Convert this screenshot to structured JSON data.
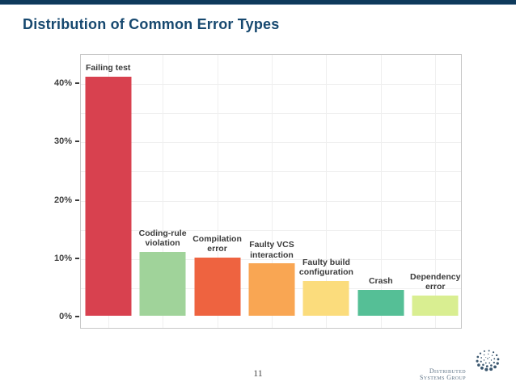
{
  "slide": {
    "title": "Distribution of Common Error Types",
    "page_number": "11",
    "footer_logo_text": "Distributed Systems Group"
  },
  "colors": {
    "top_bar": "#0e3a5c",
    "title_text": "#16486f",
    "axis_text": "#404040",
    "bar_label_text": "#3a3a3a",
    "gridline": "#efefef",
    "plot_border": "#c8c8c8",
    "page_number_text": "#4a4a4a",
    "logo_text": "#5d7285",
    "logo_dots": "#3a566e"
  },
  "chart_data": {
    "type": "bar",
    "title": "",
    "xlabel": "",
    "ylabel": "",
    "categories": [
      "Failing test",
      "Coding-rule violation",
      "Compilation error",
      "Faulty VCS interaction",
      "Faulty build configuration",
      "Crash",
      "Dependency error"
    ],
    "values": [
      41,
      11,
      10,
      9,
      6,
      4.5,
      3.5
    ],
    "value_unit": "percent",
    "bar_colors": [
      "#d8414f",
      "#a0d39a",
      "#ee6340",
      "#f9a653",
      "#fbdc7c",
      "#55bf96",
      "#d9ee91"
    ],
    "y_tick_labels": [
      "0%",
      "10%",
      "20%",
      "30%",
      "40%"
    ],
    "y_tick_values": [
      0,
      10,
      20,
      30,
      40
    ],
    "ylim": [
      0,
      45
    ],
    "grid": true,
    "minor_grid_step": 5,
    "legend": "none",
    "bar_label_position": "above-bar"
  }
}
